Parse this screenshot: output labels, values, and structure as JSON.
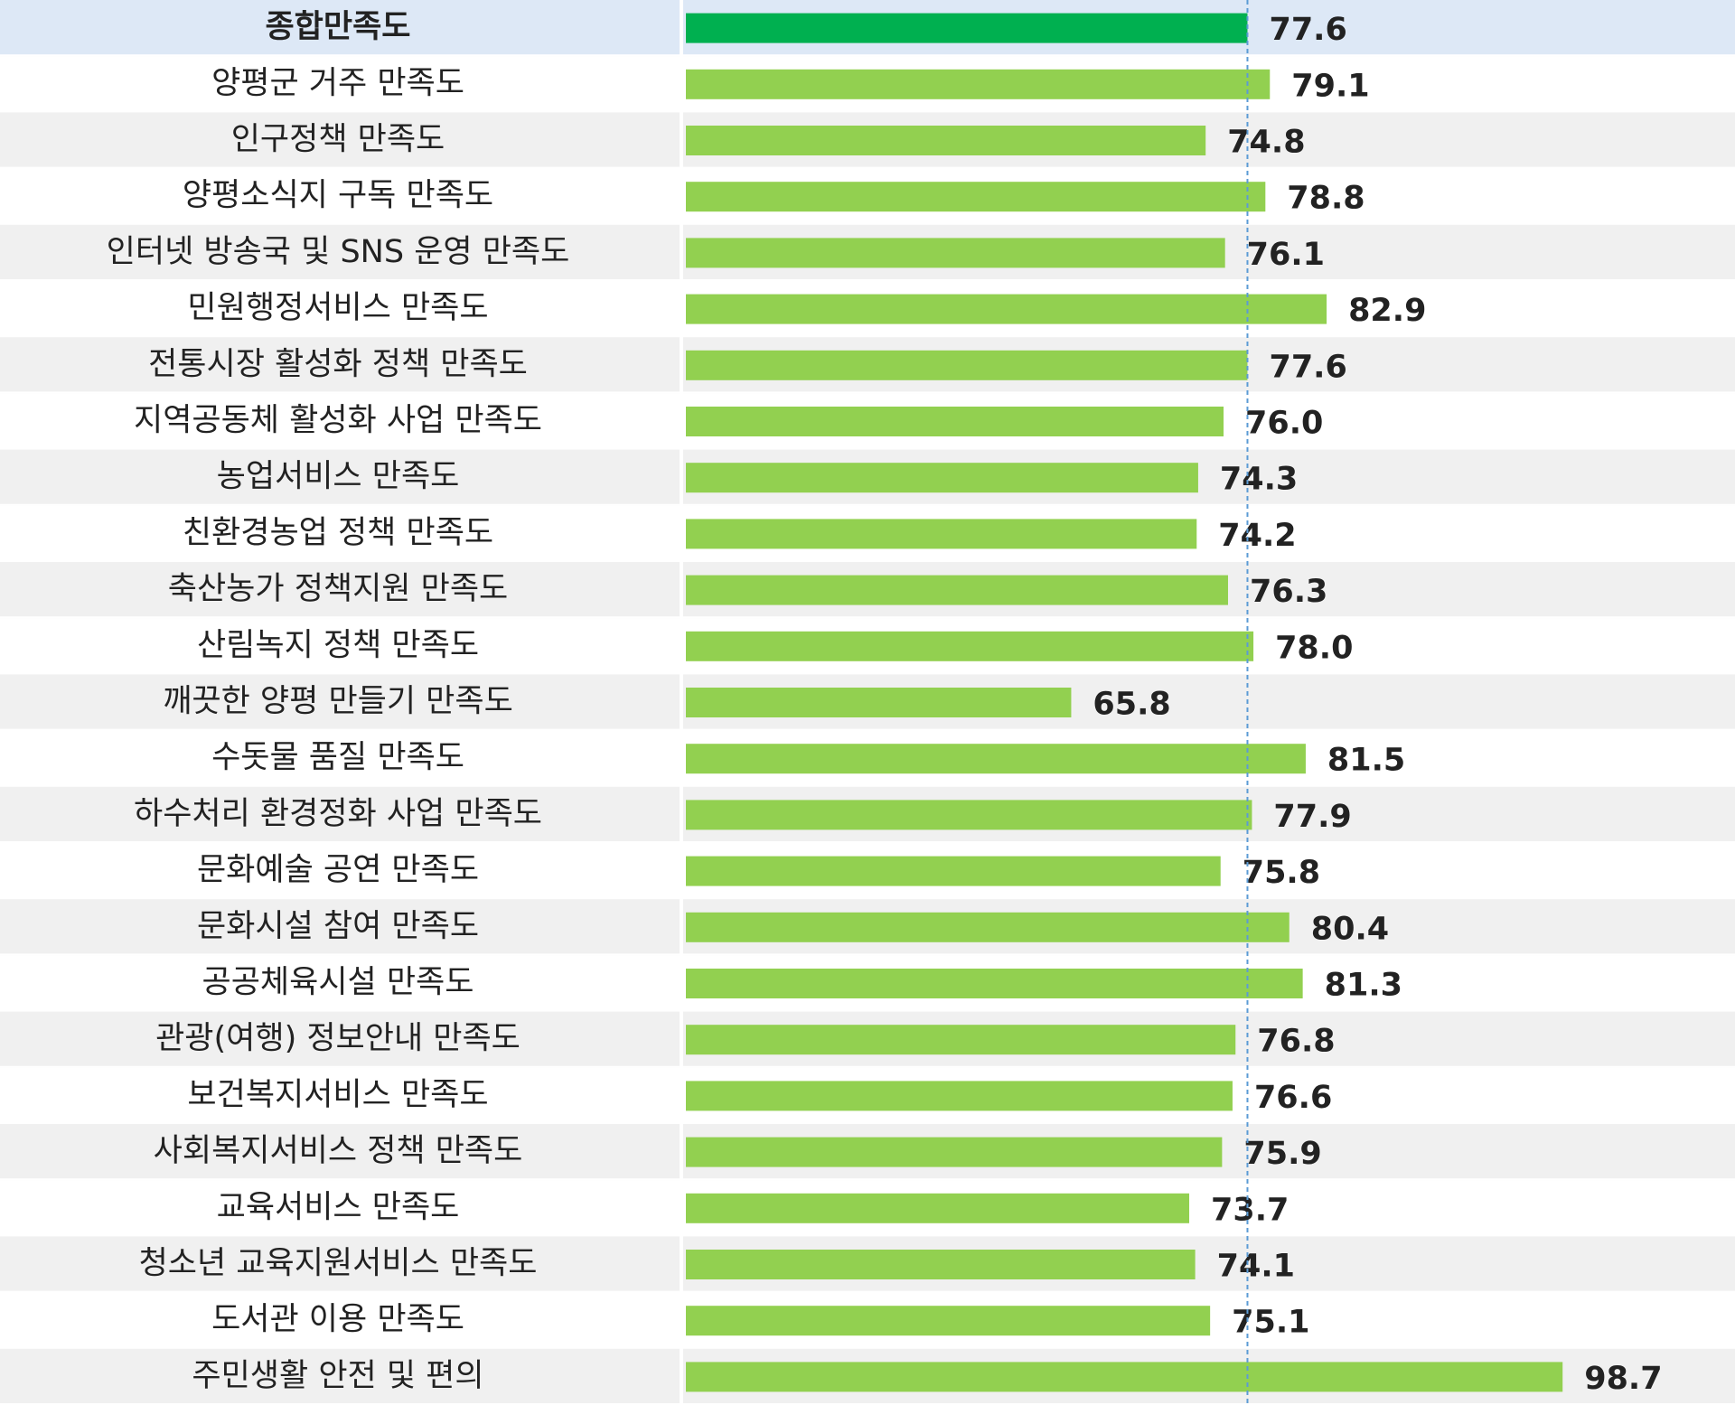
{
  "chart_data": {
    "type": "hbar",
    "categories": [
      "종합만족도",
      "양평군 거주 만족도",
      "인구정책 만족도",
      "양평소식지 구독 만족도",
      "인터넷 방송국 및 SNS 운영 만족도",
      "민원행정서비스 만족도",
      "전통시장 활성화 정책 만족도",
      "지역공동체 활성화 사업 만족도",
      "농업서비스 만족도",
      "친환경농업 정책 만족도",
      "축산농가 정책지원 만족도",
      "산림녹지 정책 만족도",
      "깨끗한 양평 만들기 만족도",
      "수돗물 품질 만족도",
      "하수처리 환경정화 사업 만족도",
      "문화예술 공연 만족도",
      "문화시설 참여 만족도",
      "공공체육시설 만족도",
      "관광(여행) 정보안내 만족도",
      "보건복지서비스 만족도",
      "사회복지서비스 정책 만족도",
      "교육서비스 만족도",
      "청소년 교육지원서비스 만족도",
      "도서관 이용 만족도",
      "주민생활 안전 및 편의"
    ],
    "values": [
      77.6,
      79.1,
      74.8,
      78.8,
      76.1,
      82.9,
      77.6,
      76.0,
      74.3,
      74.2,
      76.3,
      78.0,
      65.8,
      81.5,
      77.9,
      75.8,
      80.4,
      81.3,
      76.8,
      76.6,
      75.9,
      73.7,
      74.1,
      75.1,
      98.7
    ],
    "value_labels": [
      "77.6",
      "79.1",
      "74.8",
      "78.8",
      "76.1",
      "82.9",
      "77.6",
      "76.0",
      "74.3",
      "74.2",
      "76.3",
      "78.0",
      "65.8",
      "81.5",
      "77.9",
      "75.8",
      "80.4",
      "81.3",
      "76.8",
      "76.6",
      "75.9",
      "73.7",
      "74.1",
      "75.1",
      "98.7"
    ],
    "color": "#92d050",
    "highlight_color": "#00b050",
    "xlim": [
      40,
      110
    ]
  }
}
